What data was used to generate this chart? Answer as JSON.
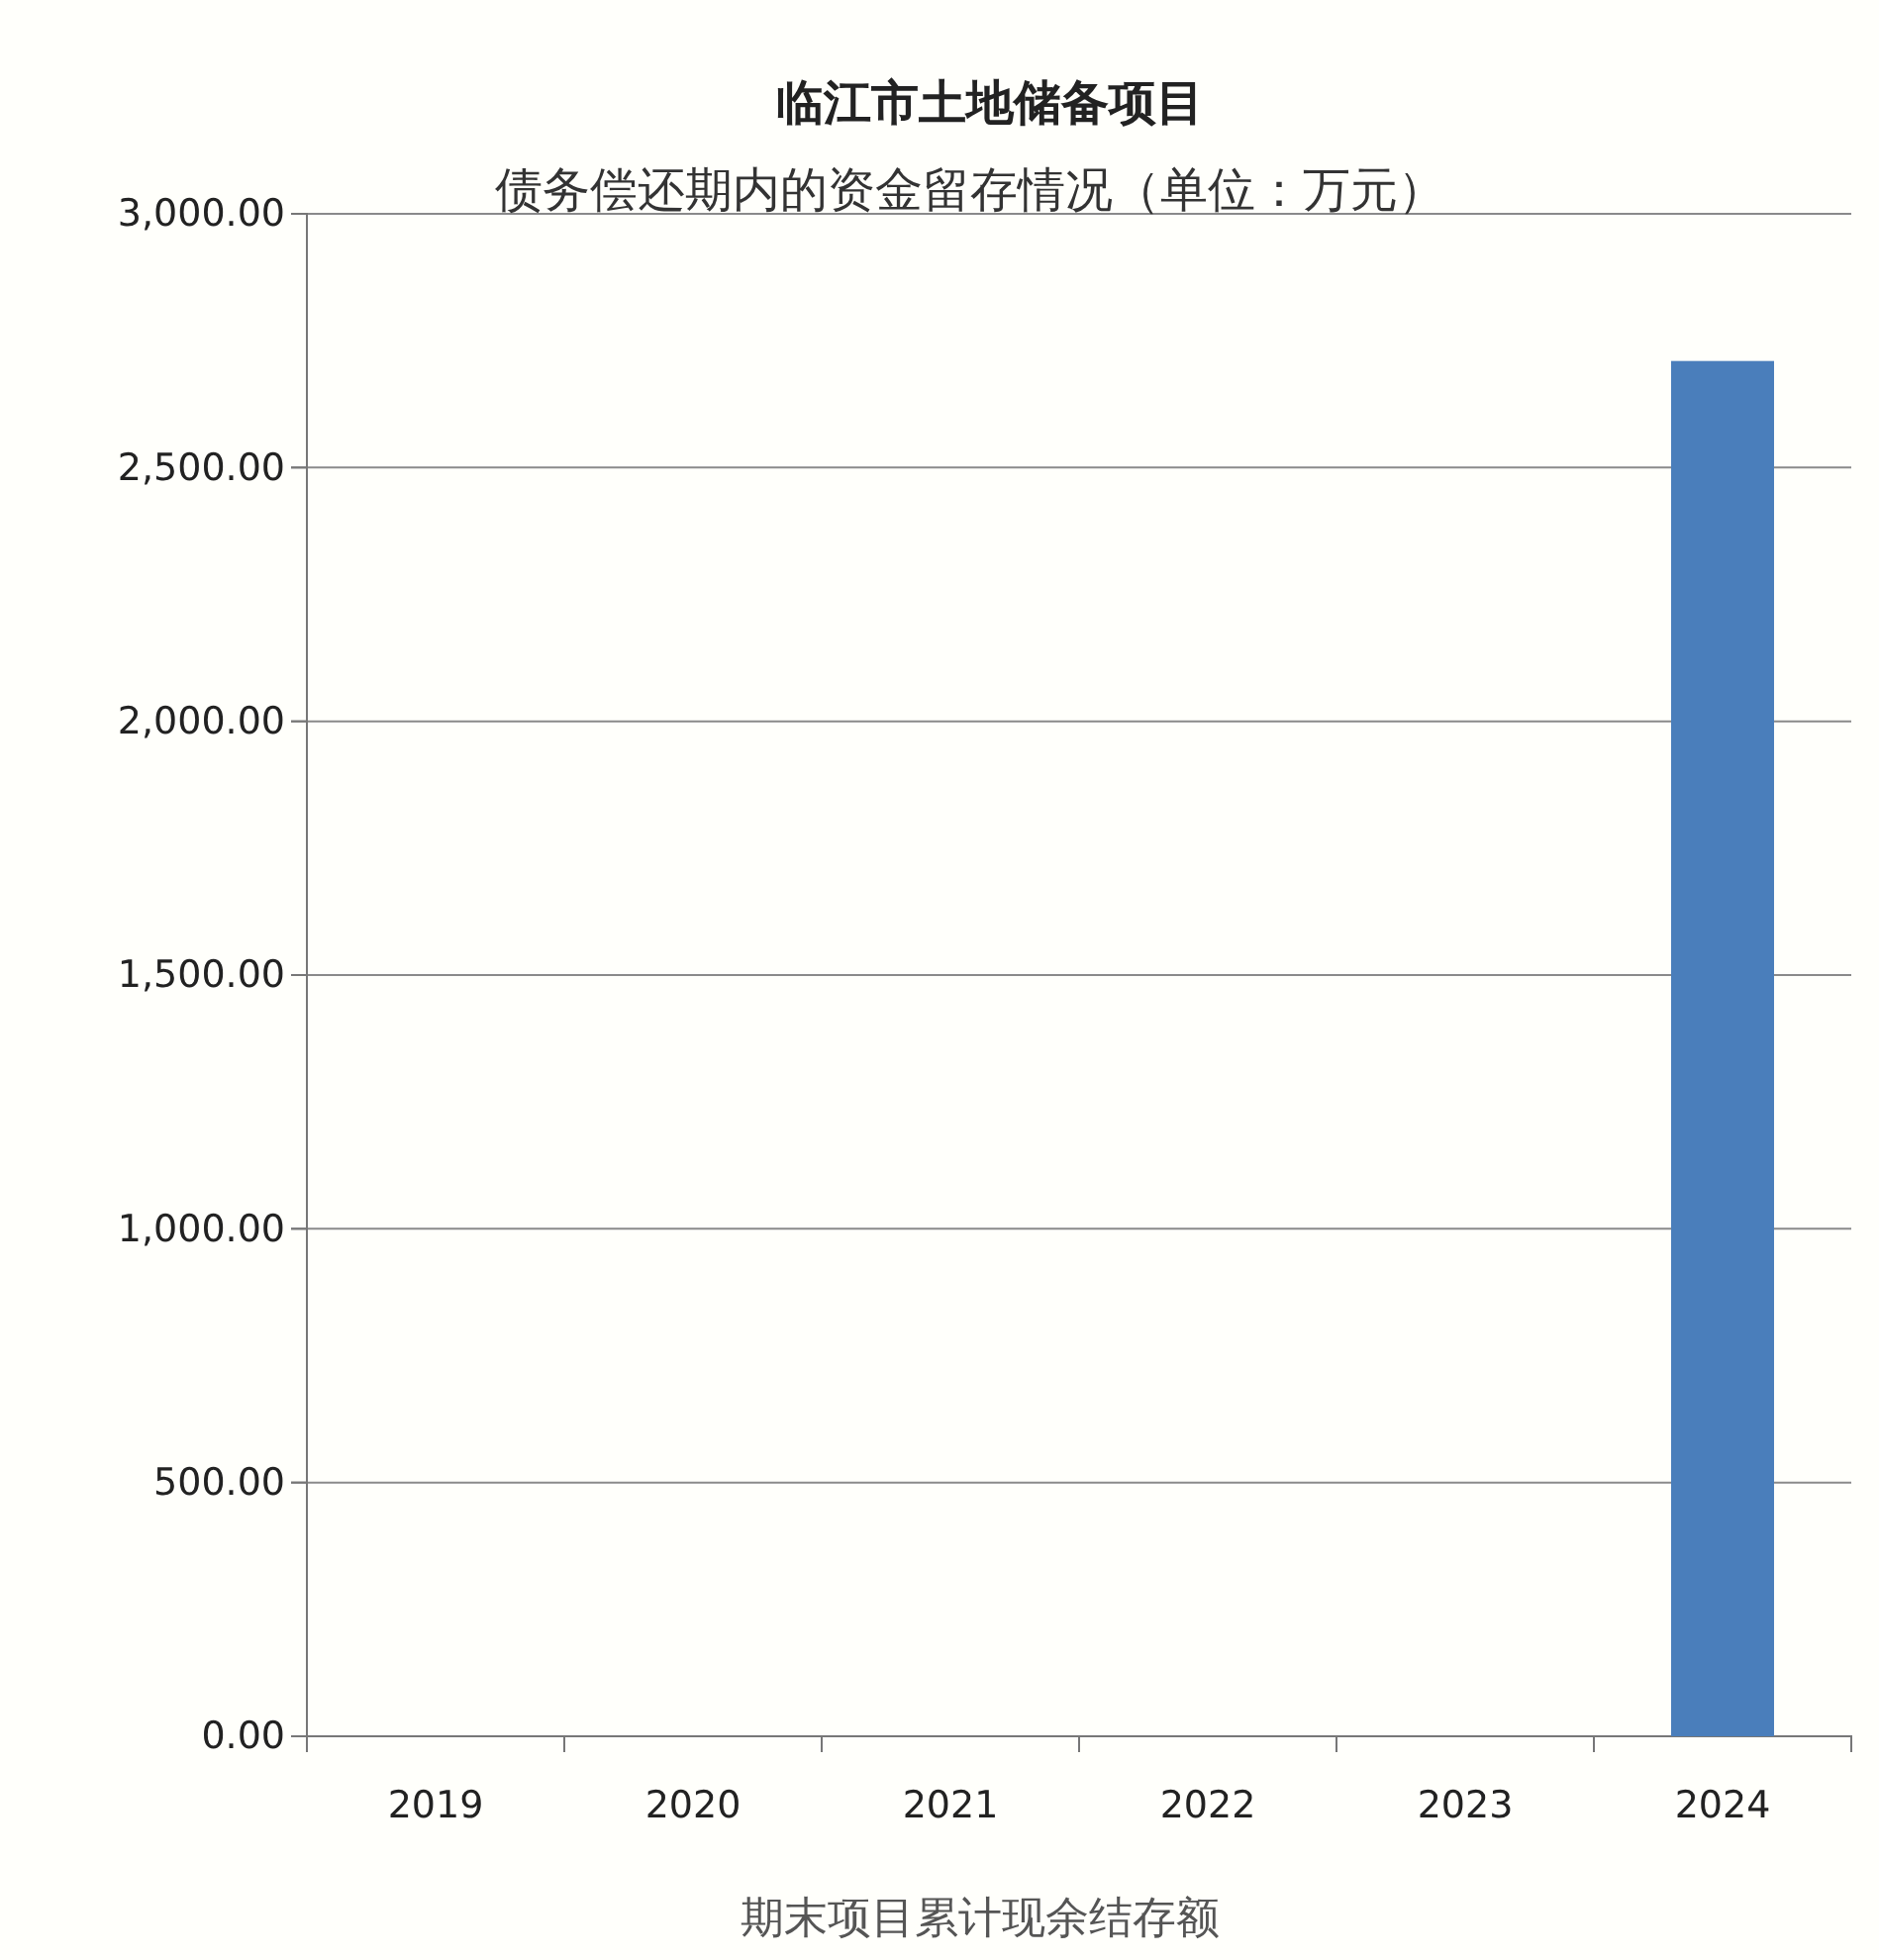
{
  "chart_data": {
    "type": "bar",
    "title": "临江市土地储备项目",
    "subtitle": "债务偿还期内的资金留存情况（单位：万元）",
    "xlabel": "期末项目累计现余结存额",
    "categories": [
      "2019",
      "2020",
      "2021",
      "2022",
      "2023",
      "2024"
    ],
    "values": [
      0,
      0,
      0,
      0,
      0,
      2710
    ],
    "color": "#4a7ebb",
    "ylim": [
      0,
      3000
    ],
    "yticks": [
      {
        "value": 0,
        "label": "0.00"
      },
      {
        "value": 500,
        "label": "500.00"
      },
      {
        "value": 1000,
        "label": "1,000.00"
      },
      {
        "value": 1500,
        "label": "1,500.00"
      },
      {
        "value": 2000,
        "label": "2,000.00"
      },
      {
        "value": 2500,
        "label": "2,500.00"
      },
      {
        "value": 3000,
        "label": "3,000.00"
      }
    ],
    "grid": "y"
  }
}
